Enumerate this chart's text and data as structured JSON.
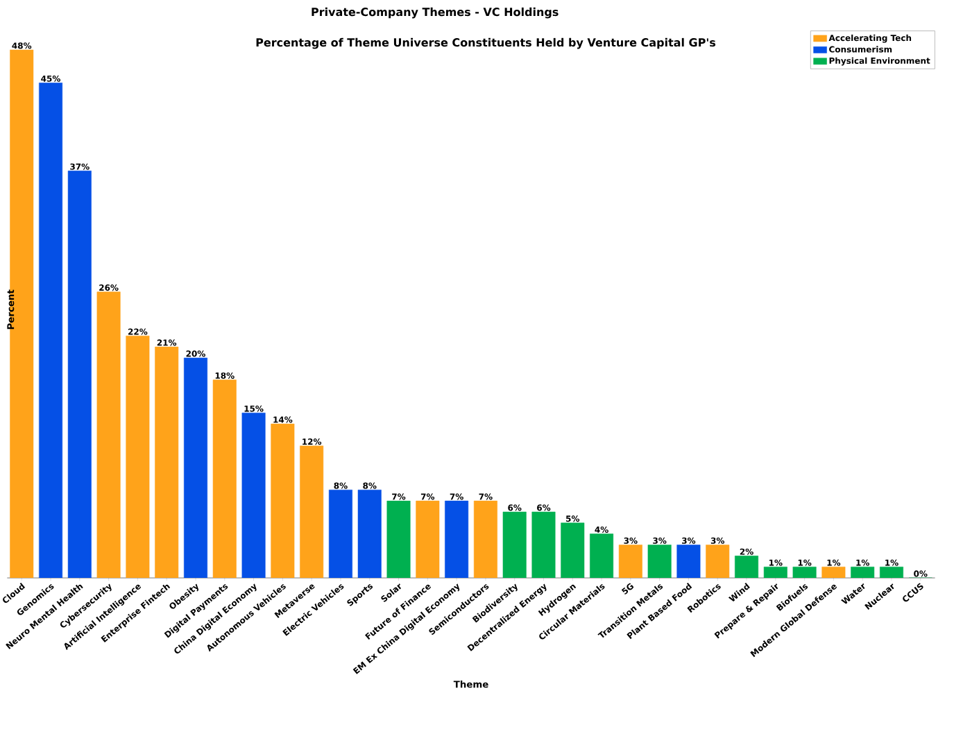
{
  "chart_data": {
    "type": "bar",
    "title": "Private-Company Themes - VC Holdings",
    "subtitle": "Percentage of Theme Universe Constituents Held by Venture Capital GP's",
    "xlabel": "Theme",
    "ylabel": "Percent",
    "categories": [
      "Cloud",
      "Genomics",
      "Neuro Mental Health",
      "Cybersecurity",
      "Artificial Intelligence",
      "Enterprise Fintech",
      "Obesity",
      "Digital Payments",
      "China Digital Economy",
      "Autonomous Vehicles",
      "Metaverse",
      "Electric Vehicles",
      "Sports",
      "Solar",
      "Future of Finance",
      "EM Ex China Digital Economy",
      "Semiconductors",
      "Biodiversity",
      "Decentralized Energy",
      "Hydrogen",
      "Circular Materials",
      "5G",
      "Transition Metals",
      "Plant Based Food",
      "Robotics",
      "Wind",
      "Prepare & Repair",
      "Biofuels",
      "Modern Global Defense",
      "Water",
      "Nuclear",
      "CCUS"
    ],
    "series": [
      {
        "name": "Accelerating Tech",
        "color": "#ffa31a",
        "values": [
          48,
          null,
          null,
          26,
          22,
          21,
          null,
          18,
          null,
          14,
          12,
          null,
          null,
          null,
          7,
          null,
          7,
          null,
          null,
          null,
          null,
          3,
          null,
          null,
          3,
          null,
          null,
          null,
          1,
          null,
          null,
          null
        ],
        "value_labels": [
          "48%",
          null,
          null,
          "26%",
          "22%",
          "21%",
          null,
          "18%",
          null,
          "14%",
          "12%",
          null,
          null,
          null,
          "7%",
          null,
          "7%",
          null,
          null,
          null,
          null,
          "3%",
          null,
          null,
          "3%",
          null,
          null,
          null,
          "1%",
          null,
          null,
          null
        ]
      },
      {
        "name": "Consumerism",
        "color": "#0550e6",
        "values": [
          null,
          45,
          37,
          null,
          null,
          null,
          20,
          null,
          15,
          null,
          null,
          8,
          8,
          null,
          null,
          7,
          null,
          null,
          null,
          null,
          null,
          null,
          null,
          3,
          null,
          null,
          null,
          null,
          null,
          null,
          null,
          null
        ],
        "value_labels": [
          null,
          "45%",
          "37%",
          null,
          null,
          null,
          "20%",
          null,
          "15%",
          null,
          null,
          "8%",
          "8%",
          null,
          null,
          "7%",
          null,
          null,
          null,
          null,
          null,
          null,
          null,
          "3%",
          null,
          null,
          null,
          null,
          null,
          null,
          null,
          null
        ]
      },
      {
        "name": "Physical Environment",
        "color": "#00b050",
        "values": [
          null,
          null,
          null,
          null,
          null,
          null,
          null,
          null,
          null,
          null,
          null,
          null,
          null,
          7,
          null,
          null,
          null,
          6,
          6,
          5,
          4,
          null,
          3,
          null,
          null,
          2,
          1,
          1,
          null,
          1,
          1,
          0
        ],
        "value_labels": [
          null,
          null,
          null,
          null,
          null,
          null,
          null,
          null,
          null,
          null,
          null,
          null,
          null,
          "7%",
          null,
          null,
          null,
          "6%",
          "6%",
          "5%",
          "4%",
          null,
          "3%",
          null,
          null,
          "2%",
          "1%",
          "1%",
          null,
          "1%",
          "1%",
          "0%"
        ]
      }
    ],
    "legend": "top right"
  }
}
